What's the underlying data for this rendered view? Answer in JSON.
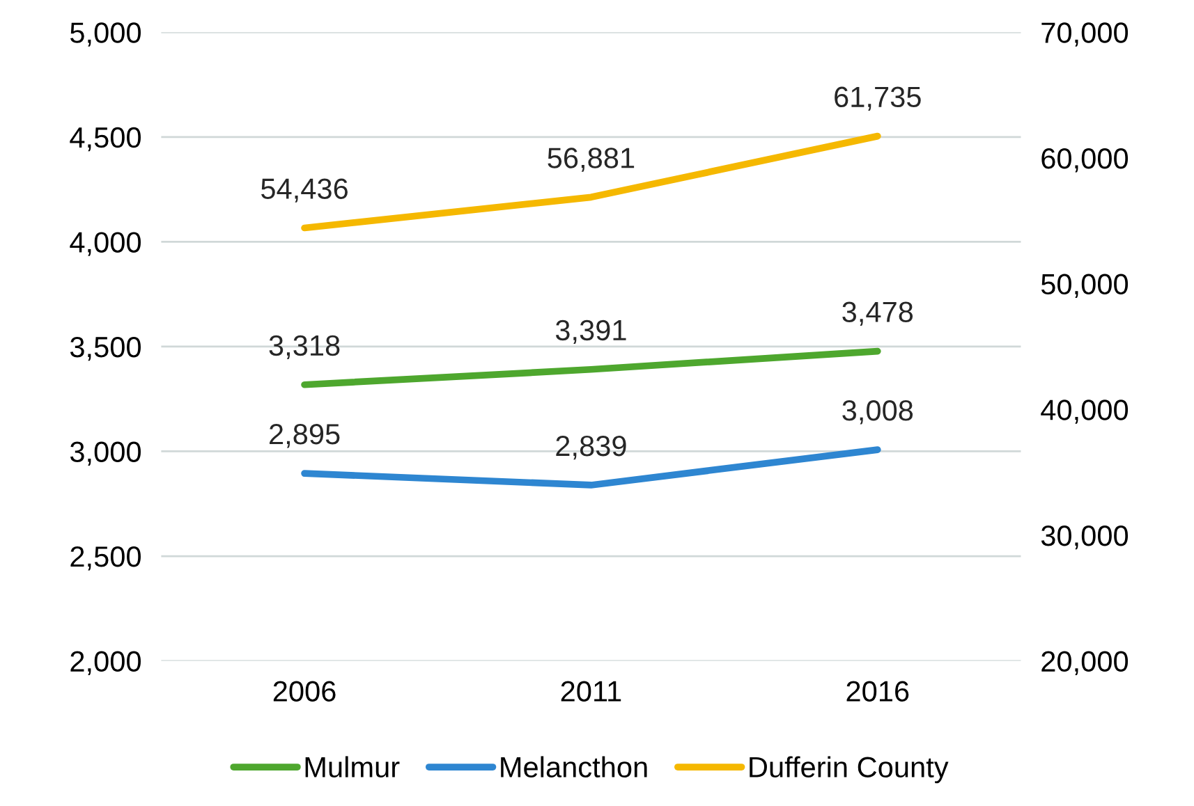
{
  "chart_data": {
    "type": "line",
    "categories": [
      "2006",
      "2011",
      "2016"
    ],
    "series": [
      {
        "name": "Mulmur",
        "color": "#4ea72e",
        "values": [
          3318,
          3391,
          3478
        ],
        "value_labels": [
          "3,318",
          "3,391",
          "3,478"
        ]
      },
      {
        "name": "Melancthon",
        "color": "#2e86d1",
        "values": [
          2895,
          2839,
          3008
        ],
        "value_labels": [
          "2,895",
          "2,839",
          "3,008"
        ]
      },
      {
        "name": "Dufferin County",
        "color": "#f5b800",
        "values": [
          54436,
          56881,
          61735
        ],
        "value_labels": [
          "54,436",
          "56,881",
          "61,735"
        ],
        "axis": "y2"
      }
    ],
    "ylim": [
      2000,
      5000
    ],
    "yticks": [
      {
        "value": 2000,
        "label": "2,000"
      },
      {
        "value": 2500,
        "label": "2,500"
      },
      {
        "value": 3000,
        "label": "3,000"
      },
      {
        "value": 3500,
        "label": "3,500"
      },
      {
        "value": 4000,
        "label": "4,000"
      },
      {
        "value": 4500,
        "label": "4,500"
      },
      {
        "value": 5000,
        "label": "5,000"
      }
    ],
    "y2lim": [
      20000,
      70000
    ],
    "y2ticks": [
      {
        "value": 20000,
        "label": "20,000"
      },
      {
        "value": 30000,
        "label": "30,000"
      },
      {
        "value": 40000,
        "label": "40,000"
      },
      {
        "value": 50000,
        "label": "50,000"
      },
      {
        "value": 60000,
        "label": "60,000"
      },
      {
        "value": 70000,
        "label": "70,000"
      }
    ],
    "grid": "y",
    "legend": "bottom",
    "marker": "none",
    "line_style": "solid"
  }
}
